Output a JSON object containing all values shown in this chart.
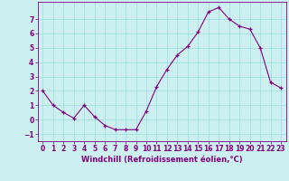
{
  "x": [
    0,
    1,
    2,
    3,
    4,
    5,
    6,
    7,
    8,
    9,
    10,
    11,
    12,
    13,
    14,
    15,
    16,
    17,
    18,
    19,
    20,
    21,
    22,
    23
  ],
  "y": [
    2,
    1,
    0.5,
    0.1,
    1,
    0.2,
    -0.4,
    -0.7,
    -0.7,
    -0.7,
    0.6,
    2.3,
    3.5,
    4.5,
    5.1,
    6.1,
    7.5,
    7.8,
    7.0,
    6.5,
    6.3,
    5.0,
    2.6,
    2.2
  ],
  "line_color": "#800080",
  "marker": "+",
  "bg_color": "#ccf0f0",
  "grid_color": "#99dddd",
  "axis_color": "#800080",
  "xlabel": "Windchill (Refroidissement éolien,°C)",
  "ylim": [
    -1.5,
    8.2
  ],
  "xlim": [
    -0.5,
    23.5
  ],
  "yticks": [
    -1,
    0,
    1,
    2,
    3,
    4,
    5,
    6,
    7
  ],
  "xticks": [
    0,
    1,
    2,
    3,
    4,
    5,
    6,
    7,
    8,
    9,
    10,
    11,
    12,
    13,
    14,
    15,
    16,
    17,
    18,
    19,
    20,
    21,
    22,
    23
  ],
  "tick_fontsize": 5.5,
  "xlabel_fontsize": 6.0
}
